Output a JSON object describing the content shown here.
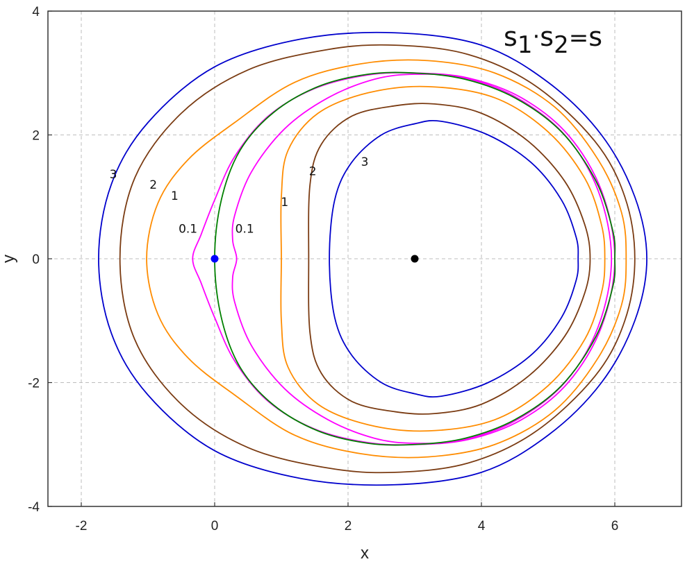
{
  "chart_data": {
    "type": "line",
    "title": "",
    "xlabel": "x",
    "ylabel": "y",
    "xlim": [
      -2.5,
      7
    ],
    "ylim": [
      -4,
      4
    ],
    "xticks": [
      -2,
      0,
      2,
      4,
      6
    ],
    "yticks": [
      -4,
      -2,
      0,
      2,
      4
    ],
    "xtick_labels": [
      "-2",
      "0",
      "2",
      "4",
      "6"
    ],
    "ytick_labels": [
      "-4",
      "-2",
      "0",
      "2",
      "4"
    ],
    "grid": true,
    "annotation": {
      "formula_parts": [
        "s",
        "1",
        "·",
        "s",
        "2",
        "=",
        "s"
      ]
    },
    "points": [
      {
        "x": 0,
        "y": 0,
        "color": "#0000ff"
      },
      {
        "x": 3,
        "y": 0,
        "color": "#000000"
      }
    ],
    "contour_labels": [
      {
        "text": "3",
        "x": -1.52,
        "y": 1.3
      },
      {
        "text": "2",
        "x": -0.92,
        "y": 1.13
      },
      {
        "text": "1",
        "x": -0.6,
        "y": 0.95
      },
      {
        "text": "0.1",
        "x": -0.4,
        "y": 0.42
      },
      {
        "text": "0.1",
        "x": 0.45,
        "y": 0.42
      },
      {
        "text": "1",
        "x": 1.05,
        "y": 0.85
      },
      {
        "text": "2",
        "x": 1.47,
        "y": 1.35
      },
      {
        "text": "3",
        "x": 2.25,
        "y": 1.5
      }
    ],
    "series": [
      {
        "color": "#0000cc",
        "points": [
          [
            -1.74,
            0
          ],
          [
            -1.55,
            1.2
          ],
          [
            -1.0,
            2.2
          ],
          [
            0,
            3.1
          ],
          [
            1.3,
            3.55
          ],
          [
            2.7,
            3.65
          ],
          [
            4.0,
            3.45
          ],
          [
            5.0,
            2.85
          ],
          [
            5.8,
            2.0
          ],
          [
            6.3,
            1.0
          ],
          [
            6.48,
            0
          ],
          [
            6.3,
            -1.0
          ],
          [
            5.8,
            -2.0
          ],
          [
            5.0,
            -2.85
          ],
          [
            4.0,
            -3.45
          ],
          [
            2.7,
            -3.65
          ],
          [
            1.3,
            -3.55
          ],
          [
            0,
            -3.1
          ],
          [
            -1.0,
            -2.2
          ],
          [
            -1.55,
            -1.2
          ]
        ]
      },
      {
        "color": "#7a3b12",
        "points": [
          [
            -1.42,
            0
          ],
          [
            -1.2,
            1.3
          ],
          [
            -0.5,
            2.35
          ],
          [
            0.5,
            3.05
          ],
          [
            1.7,
            3.38
          ],
          [
            2.7,
            3.45
          ],
          [
            3.8,
            3.3
          ],
          [
            4.8,
            2.8
          ],
          [
            5.7,
            1.9
          ],
          [
            6.15,
            1.0
          ],
          [
            6.3,
            0
          ],
          [
            6.15,
            -1.0
          ],
          [
            5.7,
            -1.9
          ],
          [
            4.8,
            -2.8
          ],
          [
            3.8,
            -3.3
          ],
          [
            2.7,
            -3.45
          ],
          [
            1.7,
            -3.38
          ],
          [
            0.5,
            -3.05
          ],
          [
            -0.5,
            -2.35
          ],
          [
            -1.2,
            -1.3
          ]
        ]
      },
      {
        "color": "#ff8c00",
        "points": [
          [
            -1.02,
            0
          ],
          [
            -0.85,
            0.9
          ],
          [
            -0.4,
            1.6
          ],
          [
            0.3,
            2.2
          ],
          [
            1.2,
            2.85
          ],
          [
            2.2,
            3.15
          ],
          [
            3.2,
            3.2
          ],
          [
            4.2,
            3.0
          ],
          [
            5.1,
            2.45
          ],
          [
            5.75,
            1.6
          ],
          [
            6.1,
            0.75
          ],
          [
            6.17,
            0
          ],
          [
            6.1,
            -0.75
          ],
          [
            5.75,
            -1.6
          ],
          [
            5.1,
            -2.45
          ],
          [
            4.2,
            -3.0
          ],
          [
            3.2,
            -3.2
          ],
          [
            2.2,
            -3.15
          ],
          [
            1.2,
            -2.85
          ],
          [
            0.3,
            -2.2
          ],
          [
            -0.4,
            -1.6
          ],
          [
            -0.85,
            -0.9
          ]
        ]
      },
      {
        "color": "#ff00ff",
        "points": [
          [
            -0.33,
            0
          ],
          [
            -0.2,
            0.4
          ],
          [
            0,
            0.95
          ],
          [
            0.3,
            1.65
          ],
          [
            0.8,
            2.3
          ],
          [
            1.5,
            2.75
          ],
          [
            2.3,
            2.97
          ],
          [
            3.0,
            3.0
          ],
          [
            3.8,
            2.92
          ],
          [
            4.6,
            2.6
          ],
          [
            5.3,
            2.0
          ],
          [
            5.8,
            1.1
          ],
          [
            6.0,
            0
          ],
          [
            5.8,
            -1.1
          ],
          [
            5.3,
            -2.0
          ],
          [
            4.6,
            -2.6
          ],
          [
            3.8,
            -2.92
          ],
          [
            3.0,
            -3.0
          ],
          [
            2.3,
            -2.97
          ],
          [
            1.5,
            -2.75
          ],
          [
            0.8,
            -2.3
          ],
          [
            0.3,
            -1.65
          ],
          [
            0,
            -0.95
          ],
          [
            -0.2,
            -0.4
          ]
        ]
      },
      {
        "color": "#ff00ff",
        "points": [
          [
            0.33,
            0
          ],
          [
            0.27,
            0.3
          ],
          [
            0.3,
            0.7
          ],
          [
            0.55,
            1.4
          ],
          [
            1.05,
            2.1
          ],
          [
            1.7,
            2.6
          ],
          [
            2.4,
            2.9
          ],
          [
            3.0,
            2.98
          ],
          [
            3.7,
            2.93
          ],
          [
            4.5,
            2.62
          ],
          [
            5.25,
            2.0
          ],
          [
            5.75,
            1.1
          ],
          [
            5.95,
            0
          ],
          [
            5.75,
            -1.1
          ],
          [
            5.25,
            -2.0
          ],
          [
            4.5,
            -2.62
          ],
          [
            3.7,
            -2.93
          ],
          [
            3.0,
            -2.98
          ],
          [
            2.4,
            -2.9
          ],
          [
            1.7,
            -2.6
          ],
          [
            1.05,
            -2.1
          ],
          [
            0.55,
            -1.4
          ],
          [
            0.3,
            -0.7
          ],
          [
            0.27,
            -0.3
          ]
        ]
      },
      {
        "color": "#008000",
        "points": [
          [
            0,
            0
          ],
          [
            0.1,
            0.95
          ],
          [
            0.38,
            1.75
          ],
          [
            0.88,
            2.36
          ],
          [
            1.55,
            2.78
          ],
          [
            2.3,
            2.98
          ],
          [
            3.0,
            3.0
          ],
          [
            3.75,
            2.9
          ],
          [
            4.5,
            2.6
          ],
          [
            5.2,
            2.05
          ],
          [
            5.72,
            1.25
          ],
          [
            5.97,
            0.45
          ],
          [
            6.0,
            0
          ],
          [
            5.97,
            -0.45
          ],
          [
            5.72,
            -1.25
          ],
          [
            5.2,
            -2.05
          ],
          [
            4.5,
            -2.6
          ],
          [
            3.75,
            -2.9
          ],
          [
            3.0,
            -3.0
          ],
          [
            2.3,
            -2.98
          ],
          [
            1.55,
            -2.78
          ],
          [
            0.88,
            -2.36
          ],
          [
            0.38,
            -1.75
          ],
          [
            0.1,
            -0.95
          ]
        ]
      },
      {
        "color": "#ff8c00",
        "points": [
          [
            1.0,
            0
          ],
          [
            1.0,
            1.0
          ],
          [
            1.1,
            1.75
          ],
          [
            1.55,
            2.35
          ],
          [
            2.3,
            2.68
          ],
          [
            3.2,
            2.78
          ],
          [
            4.2,
            2.6
          ],
          [
            5.0,
            2.05
          ],
          [
            5.55,
            1.3
          ],
          [
            5.8,
            0.55
          ],
          [
            5.85,
            0
          ],
          [
            5.8,
            -0.55
          ],
          [
            5.55,
            -1.3
          ],
          [
            5.0,
            -2.05
          ],
          [
            4.2,
            -2.6
          ],
          [
            3.2,
            -2.78
          ],
          [
            2.3,
            -2.68
          ],
          [
            1.55,
            -2.35
          ],
          [
            1.1,
            -1.75
          ],
          [
            1.0,
            -1.0
          ]
        ]
      },
      {
        "color": "#7a3b12",
        "points": [
          [
            1.41,
            0
          ],
          [
            1.43,
            1.2
          ],
          [
            1.6,
            1.85
          ],
          [
            2.05,
            2.3
          ],
          [
            2.7,
            2.47
          ],
          [
            3.3,
            2.5
          ],
          [
            4.0,
            2.35
          ],
          [
            4.7,
            1.9
          ],
          [
            5.25,
            1.25
          ],
          [
            5.55,
            0.55
          ],
          [
            5.63,
            0
          ],
          [
            5.55,
            -0.55
          ],
          [
            5.25,
            -1.25
          ],
          [
            4.7,
            -1.9
          ],
          [
            4.0,
            -2.35
          ],
          [
            3.3,
            -2.5
          ],
          [
            2.7,
            -2.47
          ],
          [
            2.05,
            -2.3
          ],
          [
            1.6,
            -1.85
          ],
          [
            1.43,
            -1.2
          ]
        ]
      },
      {
        "color": "#0000cc",
        "points": [
          [
            1.72,
            0
          ],
          [
            1.8,
            0.95
          ],
          [
            2.05,
            1.55
          ],
          [
            2.5,
            2.0
          ],
          [
            3.0,
            2.18
          ],
          [
            3.4,
            2.22
          ],
          [
            4.1,
            2.0
          ],
          [
            4.75,
            1.55
          ],
          [
            5.2,
            0.95
          ],
          [
            5.42,
            0.35
          ],
          [
            5.45,
            0
          ],
          [
            5.42,
            -0.35
          ],
          [
            5.2,
            -0.95
          ],
          [
            4.75,
            -1.55
          ],
          [
            4.1,
            -2.0
          ],
          [
            3.4,
            -2.22
          ],
          [
            3.0,
            -2.18
          ],
          [
            2.5,
            -2.0
          ],
          [
            2.05,
            -1.55
          ],
          [
            1.8,
            -0.95
          ]
        ]
      }
    ]
  }
}
